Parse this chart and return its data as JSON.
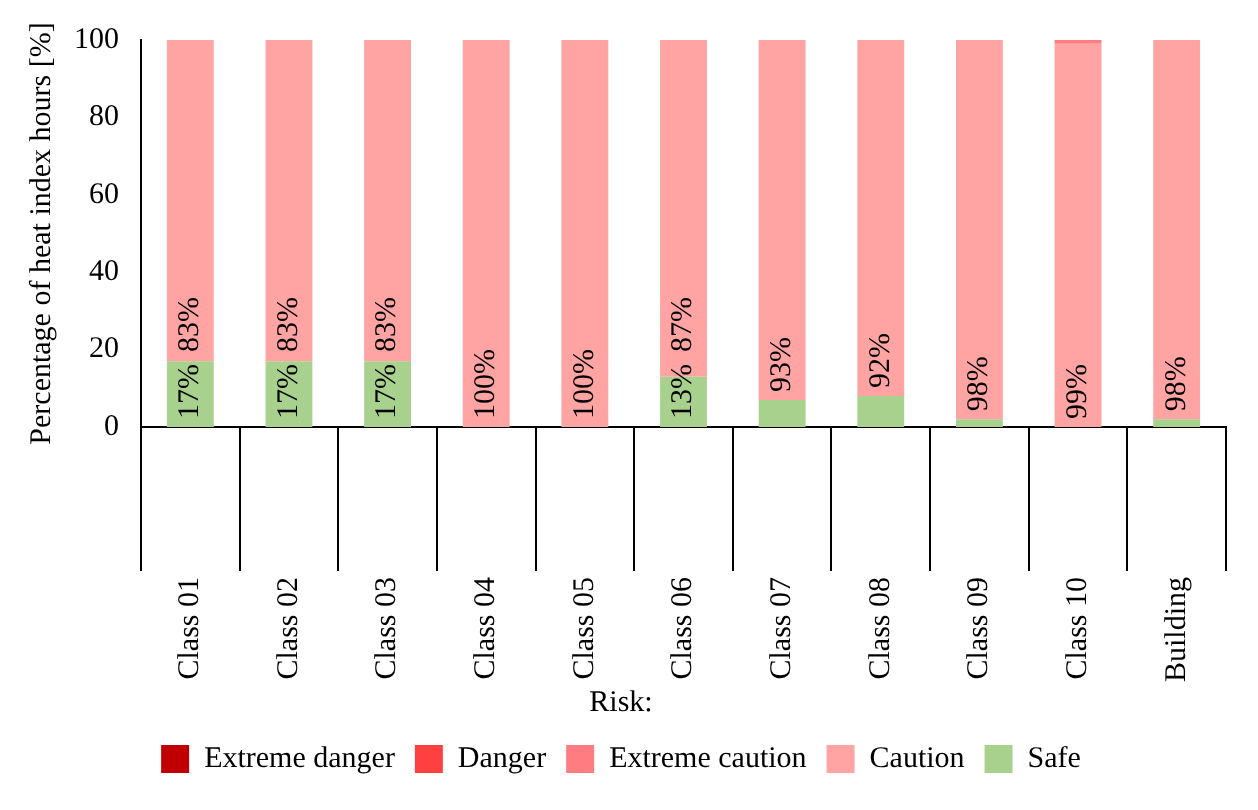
{
  "chart_data": {
    "type": "bar",
    "stacked": true,
    "ylabel": "Percentage of heat index hours [%]",
    "legend_title": "Risk:",
    "legend": "bottom",
    "grid": false,
    "categories": [
      "Class 01",
      "Class 02",
      "Class 03",
      "Class 04",
      "Class 05",
      "Class 06",
      "Class 07",
      "Class 08",
      "Class 09",
      "Class 10",
      "Building"
    ],
    "ylim": [
      0,
      100
    ],
    "yticks": [
      0,
      20,
      40,
      60,
      80,
      100
    ],
    "series": [
      {
        "name": "Safe",
        "color": "#a9d18e",
        "values": [
          17,
          17,
          17,
          0,
          0,
          13,
          7,
          8,
          2,
          0,
          2
        ],
        "value_labels": [
          "17%",
          "17%",
          "17%",
          null,
          null,
          "13%",
          null,
          null,
          null,
          null,
          null
        ]
      },
      {
        "name": "Caution",
        "color": "#ffa3a3",
        "values": [
          83,
          83,
          83,
          100,
          100,
          87,
          93,
          92,
          98,
          99,
          98
        ],
        "value_labels": [
          "83%",
          "83%",
          "83%",
          "100%",
          "100%",
          "87%",
          "93%",
          "92%",
          "98%",
          "99%",
          "98%"
        ]
      },
      {
        "name": "Extreme caution",
        "color": "#ff7c80",
        "values": [
          0,
          0,
          0,
          0,
          0,
          0,
          0,
          0,
          0,
          1,
          0
        ]
      },
      {
        "name": "Danger",
        "color": "#ff4040",
        "values": [
          0,
          0,
          0,
          0,
          0,
          0,
          0,
          0,
          0,
          0,
          0
        ]
      },
      {
        "name": "Extreme danger",
        "color": "#c00000",
        "values": [
          0,
          0,
          0,
          0,
          0,
          0,
          0,
          0,
          0,
          0,
          0
        ]
      }
    ]
  }
}
